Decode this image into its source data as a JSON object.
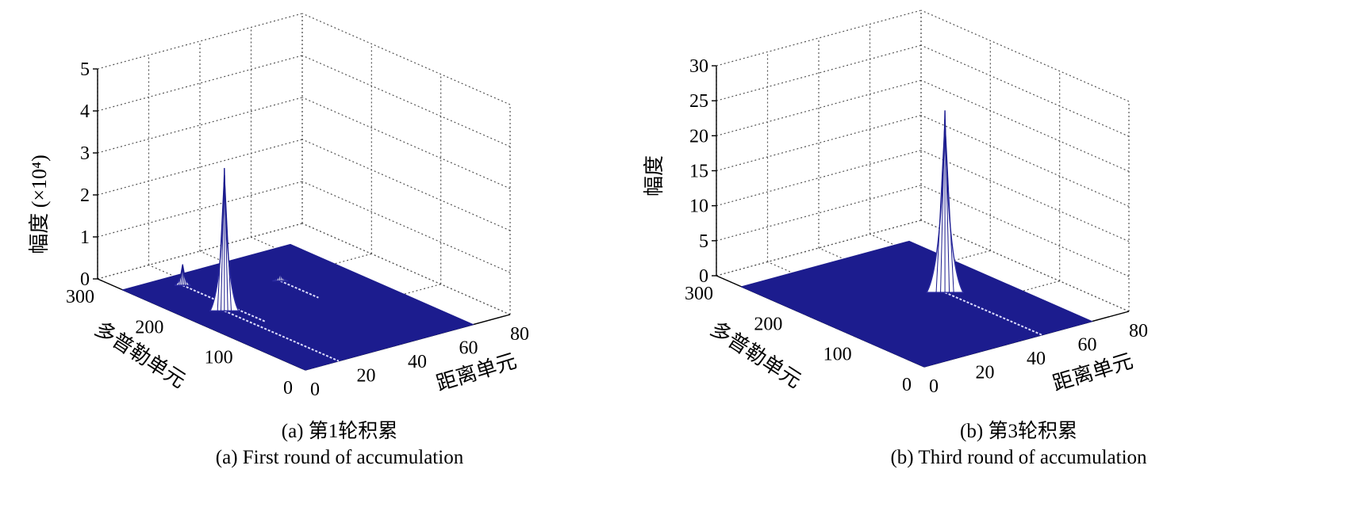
{
  "figure": {
    "panels": [
      {
        "caption_cn": "(a) 第1轮积累",
        "caption_en": "(a) First round of accumulation",
        "z_axis_label": "幅度 (×10⁴)",
        "x_axis_label": "距离单元",
        "y_axis_label": "多普勒单元"
      },
      {
        "caption_cn": "(b) 第3轮积累",
        "caption_en": "(b) Third round of accumulation",
        "z_axis_label": "幅度",
        "x_axis_label": "距离单元",
        "y_axis_label": "多普勒单元"
      }
    ]
  },
  "chart_data": [
    {
      "type": "surface",
      "title": "(a) 第1轮积累",
      "xlabel": "距离单元",
      "ylabel": "多普勒单元",
      "zlabel": "幅度 (×10⁴)",
      "xlim": [
        0,
        80
      ],
      "ylim": [
        0,
        300
      ],
      "zlim": [
        0,
        5
      ],
      "xticks": [
        0,
        20,
        40,
        60,
        80
      ],
      "yticks": [
        0,
        100,
        200,
        300
      ],
      "zticks": [
        0,
        1,
        2,
        3,
        4,
        5
      ],
      "grid": true,
      "colormap": "blue (#1a1a8c surface, white mesh lines)",
      "peaks": [
        {
          "range_cell": 13,
          "doppler_cell": 165,
          "amplitude": 3.4
        },
        {
          "range_cell": 17,
          "doppler_cell": 240,
          "amplitude": 0.5
        },
        {
          "range_cell": 43,
          "doppler_cell": 195,
          "amplitude": 0.2
        }
      ],
      "ridges": [
        {
          "range_cell": 13,
          "doppler_from": 165,
          "doppler_to": 0
        },
        {
          "range_cell": 17,
          "doppler_from": 240,
          "doppler_to": 120
        },
        {
          "range_cell": 43,
          "doppler_from": 195,
          "doppler_to": 140
        }
      ]
    },
    {
      "type": "surface",
      "title": "(b) 第3轮积累",
      "xlabel": "距离单元",
      "ylabel": "多普勒单元",
      "zlabel": "幅度",
      "xlim": [
        0,
        80
      ],
      "ylim": [
        0,
        300
      ],
      "zlim": [
        0,
        30
      ],
      "xticks": [
        0,
        20,
        40,
        60,
        80
      ],
      "yticks": [
        0,
        100,
        200,
        300
      ],
      "zticks": [
        0,
        5,
        10,
        15,
        20,
        25,
        30
      ],
      "grid": true,
      "colormap": "blue (#1a1a8c surface, white mesh lines)",
      "peaks": [
        {
          "range_cell": 46,
          "doppler_cell": 140,
          "amplitude": 26
        }
      ],
      "ridges": [
        {
          "range_cell": 46,
          "doppler_from": 140,
          "doppler_to": 0
        }
      ]
    }
  ]
}
